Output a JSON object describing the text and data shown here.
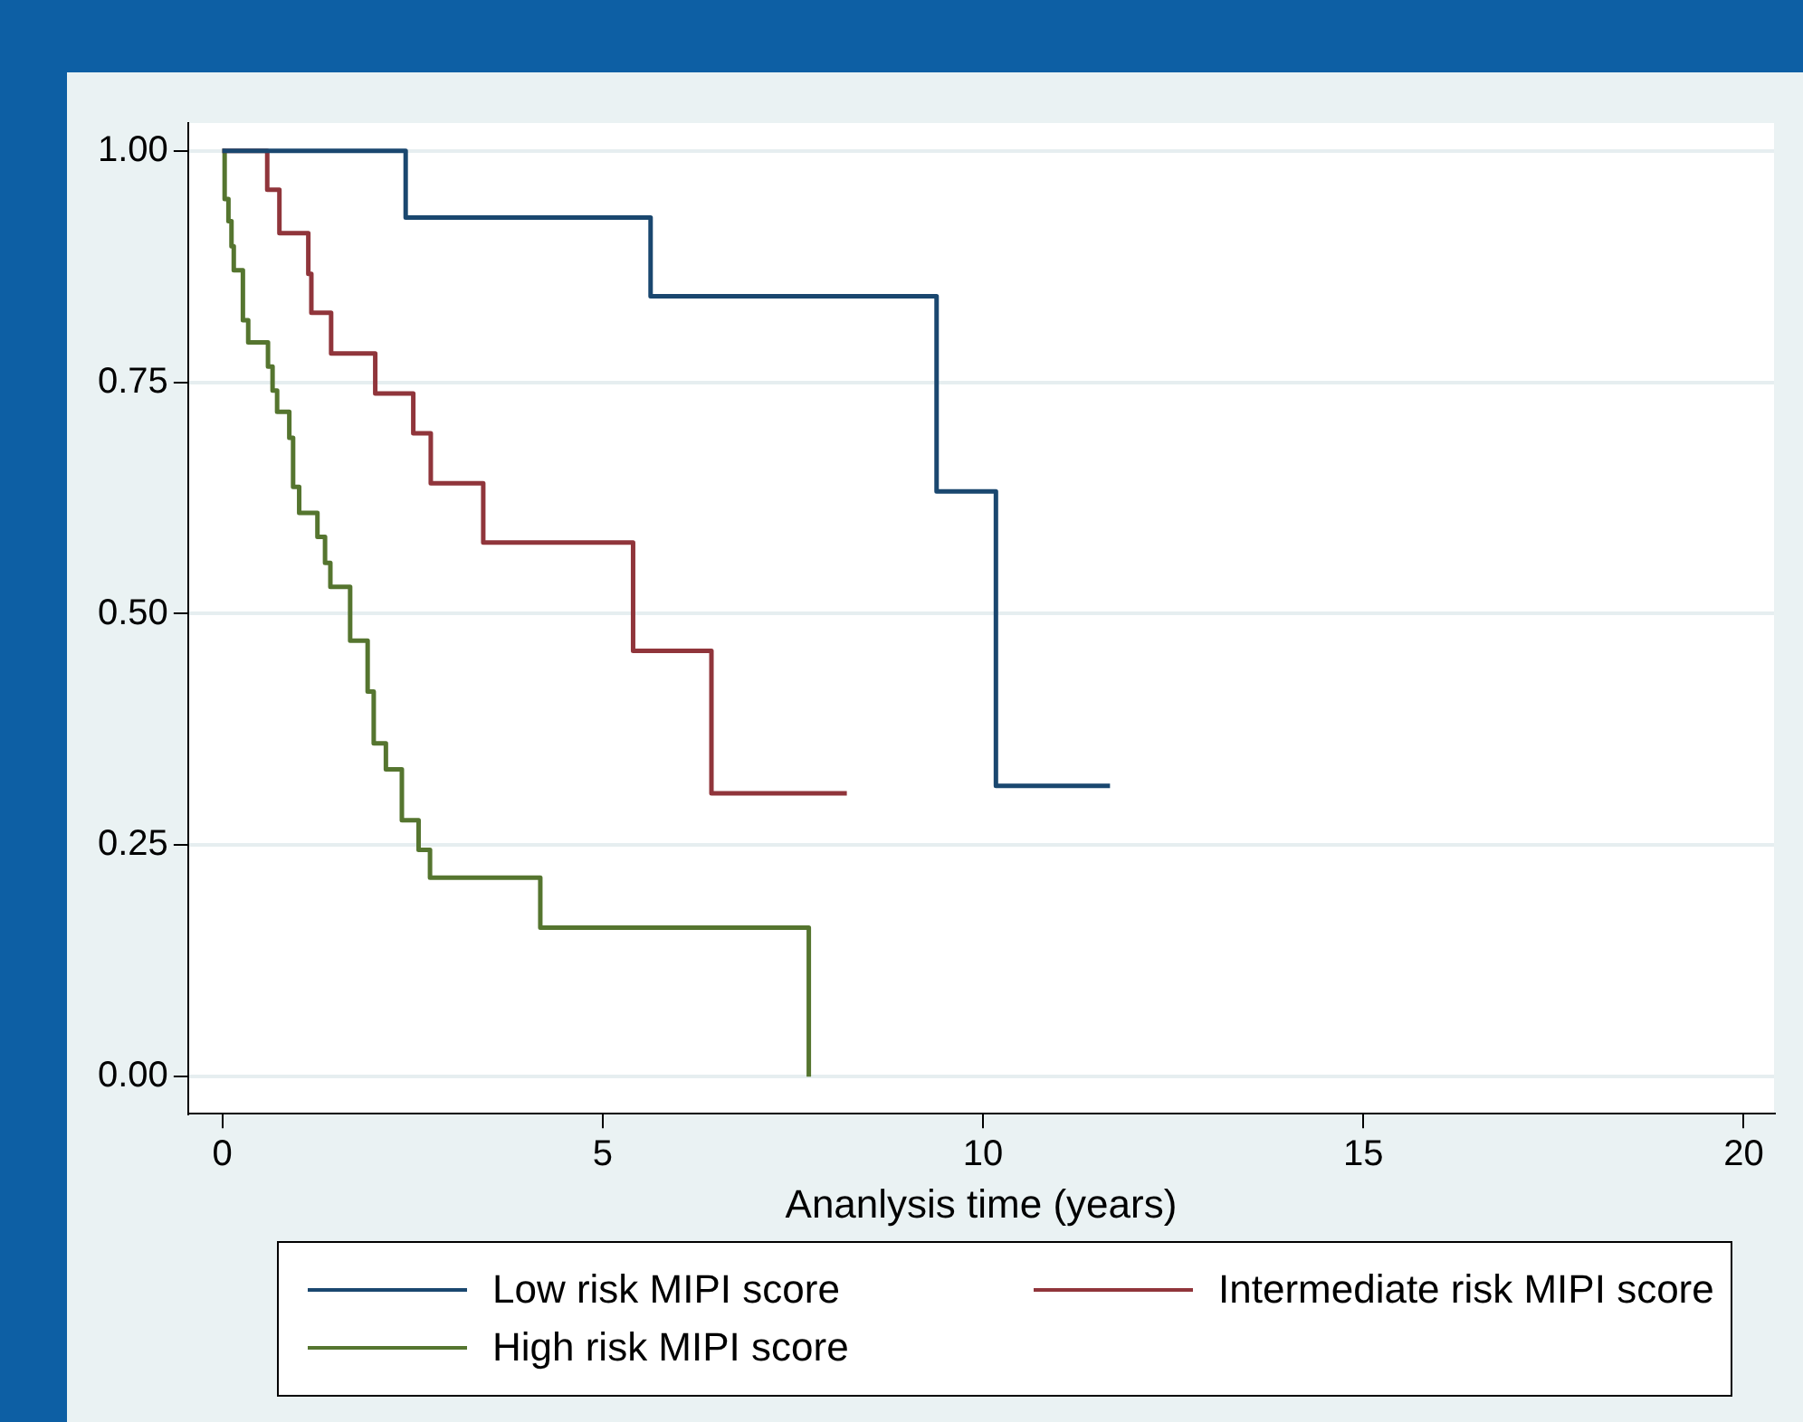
{
  "chart_data": {
    "type": "step",
    "xlabel": "Ananlysis time (years)",
    "xlim": [
      -0.45,
      20.4
    ],
    "xticks": [
      0,
      5,
      10,
      15,
      20
    ],
    "ylim": [
      -0.04,
      1.03
    ],
    "yticks": [
      {
        "value": 0,
        "label": "0.00"
      },
      {
        "value": 0.25,
        "label": "0.25"
      },
      {
        "value": 0.5,
        "label": "0.50"
      },
      {
        "value": 0.75,
        "label": "0.75"
      },
      {
        "value": 1,
        "label": "1.00"
      }
    ],
    "grid": "y",
    "legend": "bottom",
    "marker": "none",
    "line_style": "solid",
    "series": [
      {
        "name": "Low risk MIPI score",
        "color": "#1a476f",
        "x": [
          0,
          2.41,
          5.63,
          9.39,
          10.17,
          11.67
        ],
        "values": [
          1,
          0.928,
          0.843,
          0.632,
          0.314,
          0.314
        ]
      },
      {
        "name": "Intermediate risk MIPI score",
        "color": "#90353b",
        "x": [
          0,
          0.59,
          0.75,
          1.13,
          1.17,
          1.43,
          2.01,
          2.51,
          2.74,
          3.43,
          5.4,
          6.43,
          8.21
        ],
        "values": [
          1,
          0.958,
          0.911,
          0.867,
          0.825,
          0.781,
          0.738,
          0.695,
          0.641,
          0.577,
          0.46,
          0.306,
          0.306
        ]
      },
      {
        "name": "High risk MIPI score",
        "color": "#55752f",
        "x": [
          0,
          0.03,
          0.08,
          0.12,
          0.15,
          0.27,
          0.34,
          0.6,
          0.66,
          0.72,
          0.88,
          0.93,
          1.01,
          1.25,
          1.35,
          1.42,
          1.68,
          1.91,
          1.99,
          2.15,
          2.36,
          2.58,
          2.73,
          4.18,
          7.71
        ],
        "values": [
          1,
          0.948,
          0.924,
          0.897,
          0.871,
          0.817,
          0.793,
          0.767,
          0.741,
          0.718,
          0.69,
          0.637,
          0.609,
          0.583,
          0.555,
          0.529,
          0.471,
          0.416,
          0.36,
          0.332,
          0.277,
          0.245,
          0.215,
          0.161,
          0
        ]
      }
    ]
  }
}
